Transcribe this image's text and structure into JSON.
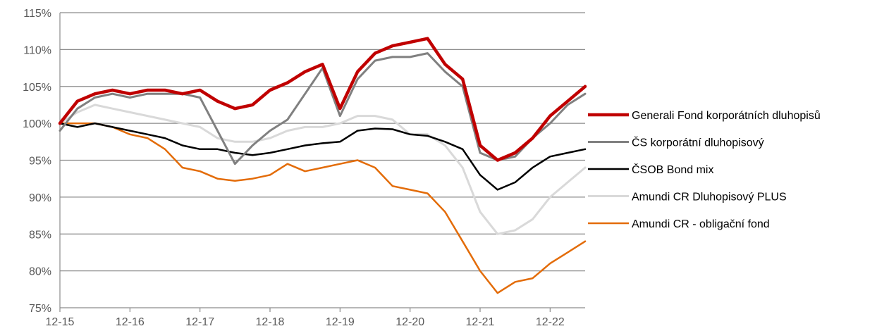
{
  "chart_data": {
    "type": "line",
    "title": "",
    "xlabel": "",
    "ylabel": "",
    "x": [
      "12-15",
      "03-16",
      "06-16",
      "09-16",
      "12-16",
      "03-17",
      "06-17",
      "09-17",
      "12-17",
      "03-18",
      "06-18",
      "09-18",
      "12-18",
      "03-19",
      "06-19",
      "09-19",
      "12-19",
      "03-20",
      "06-20",
      "09-20",
      "12-20",
      "03-21",
      "06-21",
      "09-21",
      "12-21",
      "03-22",
      "06-22",
      "09-22",
      "12-22",
      "03-23",
      "06-23"
    ],
    "xticks": [
      "12-15",
      "12-16",
      "12-17",
      "12-18",
      "12-19",
      "12-20",
      "12-21",
      "12-22"
    ],
    "ylim": [
      75,
      115
    ],
    "yticks": [
      "75%",
      "80%",
      "85%",
      "90%",
      "95%",
      "100%",
      "105%",
      "110%",
      "115%"
    ],
    "grid": "horizontal",
    "legend_position": "right",
    "series": [
      {
        "name": "Generali Fond korporátních dluhopisů",
        "color": "#c00000",
        "values": [
          100,
          103,
          104,
          104.5,
          104,
          104.5,
          104.5,
          104,
          104.5,
          103,
          102,
          102.5,
          104.5,
          105.5,
          107,
          108,
          102,
          107,
          109.5,
          110.5,
          111,
          111.5,
          108,
          106,
          97,
          95,
          96,
          98,
          101,
          103,
          105
        ]
      },
      {
        "name": "ČS korporátní dluhopisový",
        "color": "#808080",
        "values": [
          99,
          102,
          103.5,
          104,
          103.5,
          104,
          104,
          104,
          103.5,
          99,
          94.5,
          97,
          99,
          100.5,
          104,
          107.5,
          101,
          106,
          108.5,
          109,
          109,
          109.5,
          107,
          105,
          96,
          95,
          95.5,
          98,
          100,
          102.5,
          104
        ]
      },
      {
        "name": "ČSOB Bond mix",
        "color": "#000000",
        "values": [
          100,
          99.5,
          100,
          99.5,
          99,
          98.5,
          98,
          97,
          96.5,
          96.5,
          96,
          95.7,
          96,
          96.5,
          97,
          97.3,
          97.5,
          99,
          99.3,
          99.2,
          98.5,
          98.3,
          97.5,
          96.5,
          93,
          91,
          92,
          94,
          95.5,
          96,
          96.5
        ]
      },
      {
        "name": "Amundi CR Dluhopisový PLUS",
        "color": "#d9d9d9",
        "values": [
          100,
          101.5,
          102.5,
          102,
          101.5,
          101,
          100.5,
          100,
          99.5,
          98,
          97.5,
          97.5,
          98,
          99,
          99.5,
          99.5,
          100,
          101,
          101,
          100.5,
          98.5,
          98.5,
          97,
          94,
          88,
          85,
          85.5,
          87,
          90,
          92,
          94
        ]
      },
      {
        "name": "Amundi CR - obligační fond",
        "color": "#e36c09",
        "values": [
          100,
          100,
          100,
          99.5,
          98.5,
          98,
          96.5,
          94,
          93.5,
          92.5,
          92.2,
          92.5,
          93,
          94.5,
          93.5,
          94,
          94.5,
          95,
          94,
          91.5,
          91,
          90.5,
          88,
          84,
          80,
          77,
          78.5,
          79,
          81,
          82.5,
          84
        ]
      }
    ]
  }
}
